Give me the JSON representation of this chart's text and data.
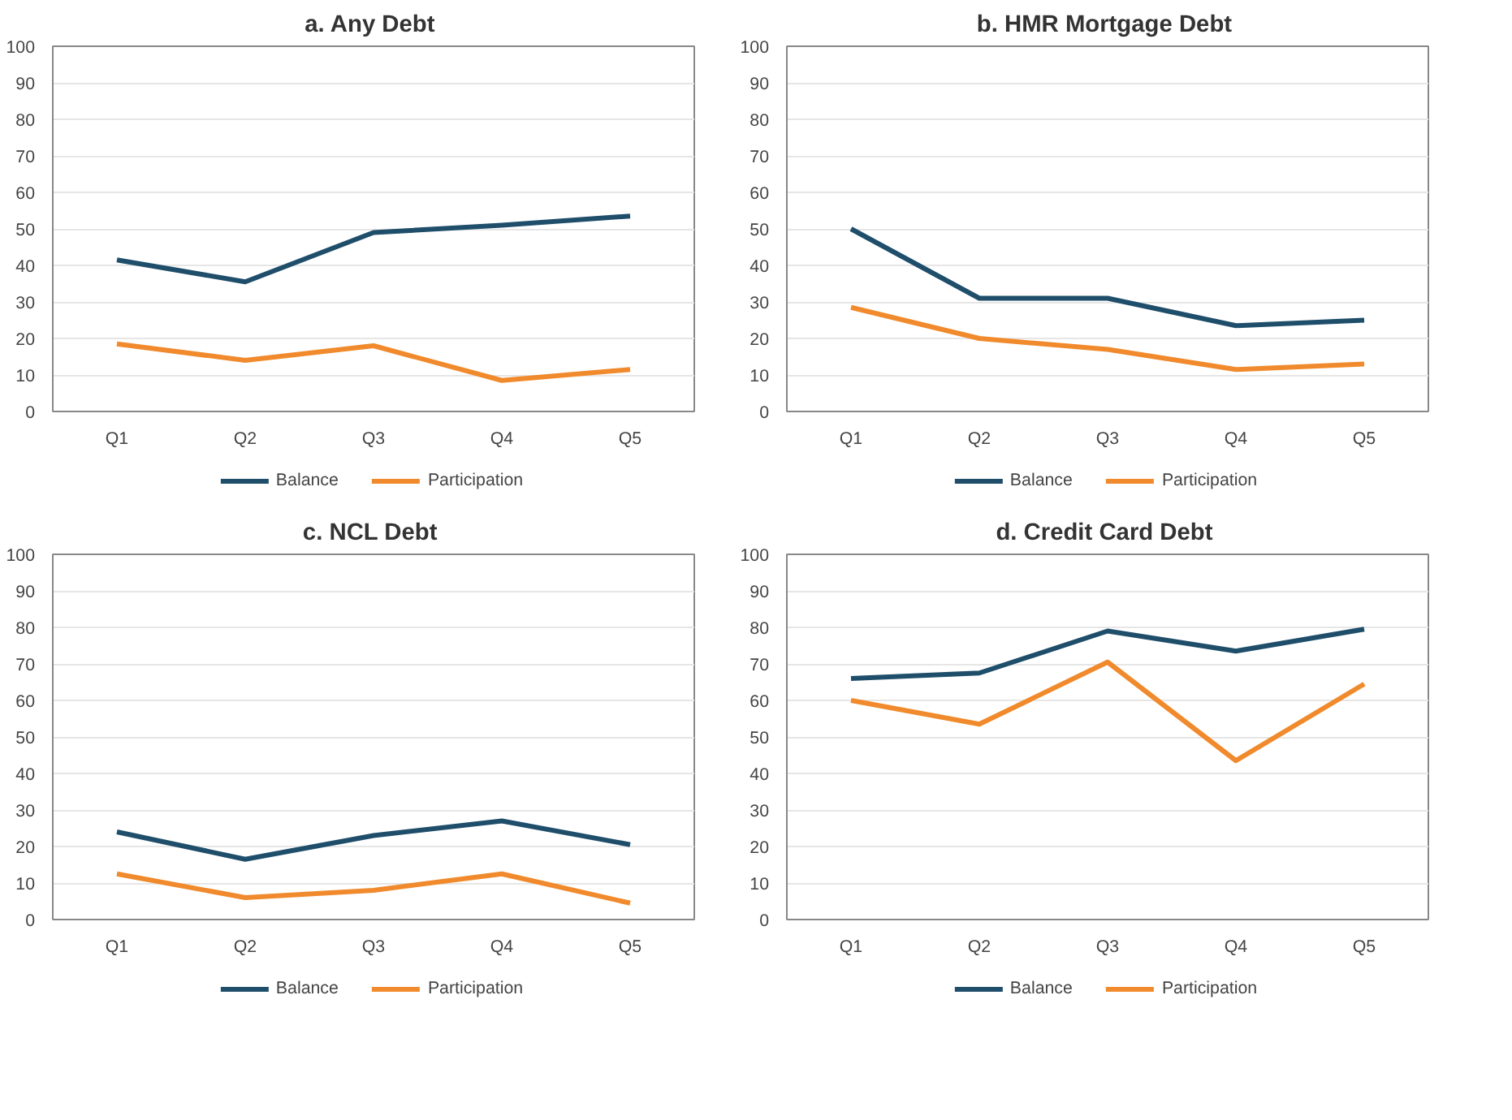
{
  "chart_data": [
    {
      "type": "line",
      "title": "a.  Any Debt",
      "categories": [
        "Q1",
        "Q2",
        "Q3",
        "Q4",
        "Q5"
      ],
      "ylim": [
        0,
        100
      ],
      "yticks": [
        0,
        10,
        20,
        30,
        40,
        50,
        60,
        70,
        80,
        90,
        100
      ],
      "grid": "y",
      "legend": "bottom",
      "series": [
        {
          "name": "Balance",
          "color": "#1f4e6b",
          "values": [
            41.5,
            35.5,
            49,
            51,
            53.5
          ]
        },
        {
          "name": "Participation",
          "color": "#f08a2c",
          "values": [
            18.5,
            14,
            18,
            8.5,
            11.5
          ]
        }
      ]
    },
    {
      "type": "line",
      "title": "b.  HMR Mortgage Debt",
      "categories": [
        "Q1",
        "Q2",
        "Q3",
        "Q4",
        "Q5"
      ],
      "ylim": [
        0,
        100
      ],
      "yticks": [
        0,
        10,
        20,
        30,
        40,
        50,
        60,
        70,
        80,
        90,
        100
      ],
      "grid": "y",
      "legend": "bottom",
      "series": [
        {
          "name": "Balance",
          "color": "#1f4e6b",
          "values": [
            50,
            31,
            31,
            23.5,
            25
          ]
        },
        {
          "name": "Participation",
          "color": "#f08a2c",
          "values": [
            28.5,
            20,
            17,
            11.5,
            13
          ]
        }
      ]
    },
    {
      "type": "line",
      "title": "c.  NCL Debt",
      "categories": [
        "Q1",
        "Q2",
        "Q3",
        "Q4",
        "Q5"
      ],
      "ylim": [
        0,
        100
      ],
      "yticks": [
        0,
        10,
        20,
        30,
        40,
        50,
        60,
        70,
        80,
        90,
        100
      ],
      "grid": "y",
      "legend": "bottom",
      "series": [
        {
          "name": "Balance",
          "color": "#1f4e6b",
          "values": [
            24,
            16.5,
            23,
            27,
            20.5
          ]
        },
        {
          "name": "Participation",
          "color": "#f08a2c",
          "values": [
            12.5,
            6,
            8,
            12.5,
            4.5
          ]
        }
      ]
    },
    {
      "type": "line",
      "title": "d.  Credit Card Debt",
      "categories": [
        "Q1",
        "Q2",
        "Q3",
        "Q4",
        "Q5"
      ],
      "ylim": [
        0,
        100
      ],
      "yticks": [
        0,
        10,
        20,
        30,
        40,
        50,
        60,
        70,
        80,
        90,
        100
      ],
      "grid": "y",
      "legend": "bottom",
      "series": [
        {
          "name": "Balance",
          "color": "#1f4e6b",
          "values": [
            66,
            67.5,
            79,
            73.5,
            79.5
          ]
        },
        {
          "name": "Participation",
          "color": "#f08a2c",
          "values": [
            60,
            53.5,
            70.5,
            43.5,
            64.5
          ]
        }
      ]
    }
  ]
}
